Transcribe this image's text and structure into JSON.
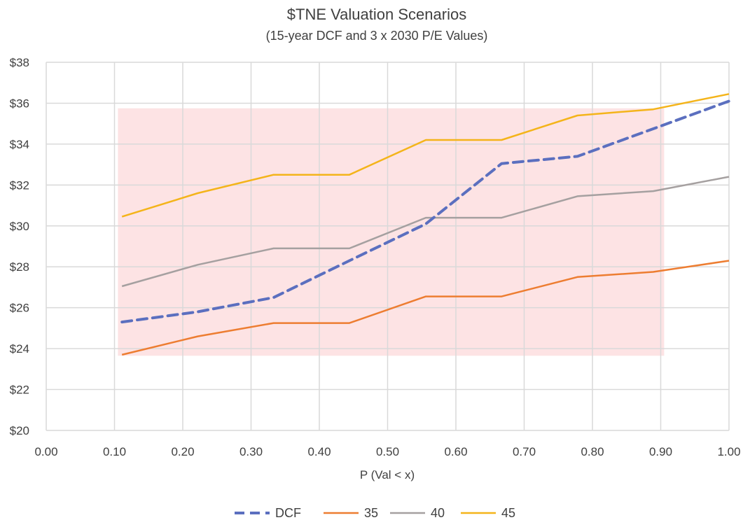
{
  "chart_data": {
    "type": "line",
    "title": "$TNE Valuation Scenarios",
    "subtitle": "(15-year DCF and 3 x 2030 P/E Values)",
    "xlabel": "P (Val < x)",
    "ylabel": "",
    "xlim": [
      0,
      1
    ],
    "ylim": [
      20,
      38
    ],
    "x_ticks": [
      "0.00",
      "0.10",
      "0.20",
      "0.30",
      "0.40",
      "0.50",
      "0.60",
      "0.70",
      "0.80",
      "0.90",
      "1.00"
    ],
    "y_ticks": [
      "$20",
      "$22",
      "$24",
      "$26",
      "$28",
      "$30",
      "$32",
      "$34",
      "$36",
      "$38"
    ],
    "grid": true,
    "legend_position": "bottom",
    "x": [
      0.111,
      0.222,
      0.333,
      0.444,
      0.556,
      0.667,
      0.778,
      0.889,
      1.0
    ],
    "series": [
      {
        "name": "DCF",
        "color": "#5b6fbf",
        "style": "dashed",
        "values": [
          25.3,
          25.8,
          26.5,
          28.3,
          30.1,
          33.05,
          33.4,
          34.75,
          36.1
        ]
      },
      {
        "name": "35",
        "color": "#ed7d31",
        "style": "solid",
        "values": [
          23.7,
          24.6,
          25.25,
          25.25,
          26.55,
          26.55,
          27.5,
          27.75,
          28.3
        ]
      },
      {
        "name": "40",
        "color": "#a5a0a0",
        "style": "solid",
        "values": [
          27.05,
          28.1,
          28.9,
          28.9,
          30.4,
          30.4,
          31.45,
          31.7,
          32.4
        ]
      },
      {
        "name": "45",
        "color": "#f4b41a",
        "style": "solid",
        "values": [
          30.45,
          31.6,
          32.5,
          32.5,
          34.2,
          34.2,
          35.4,
          35.7,
          36.45
        ]
      }
    ],
    "shaded_region": {
      "color": "#fde3e4",
      "x_range": [
        0.105,
        0.905
      ],
      "y_range": [
        23.65,
        35.75
      ]
    }
  }
}
